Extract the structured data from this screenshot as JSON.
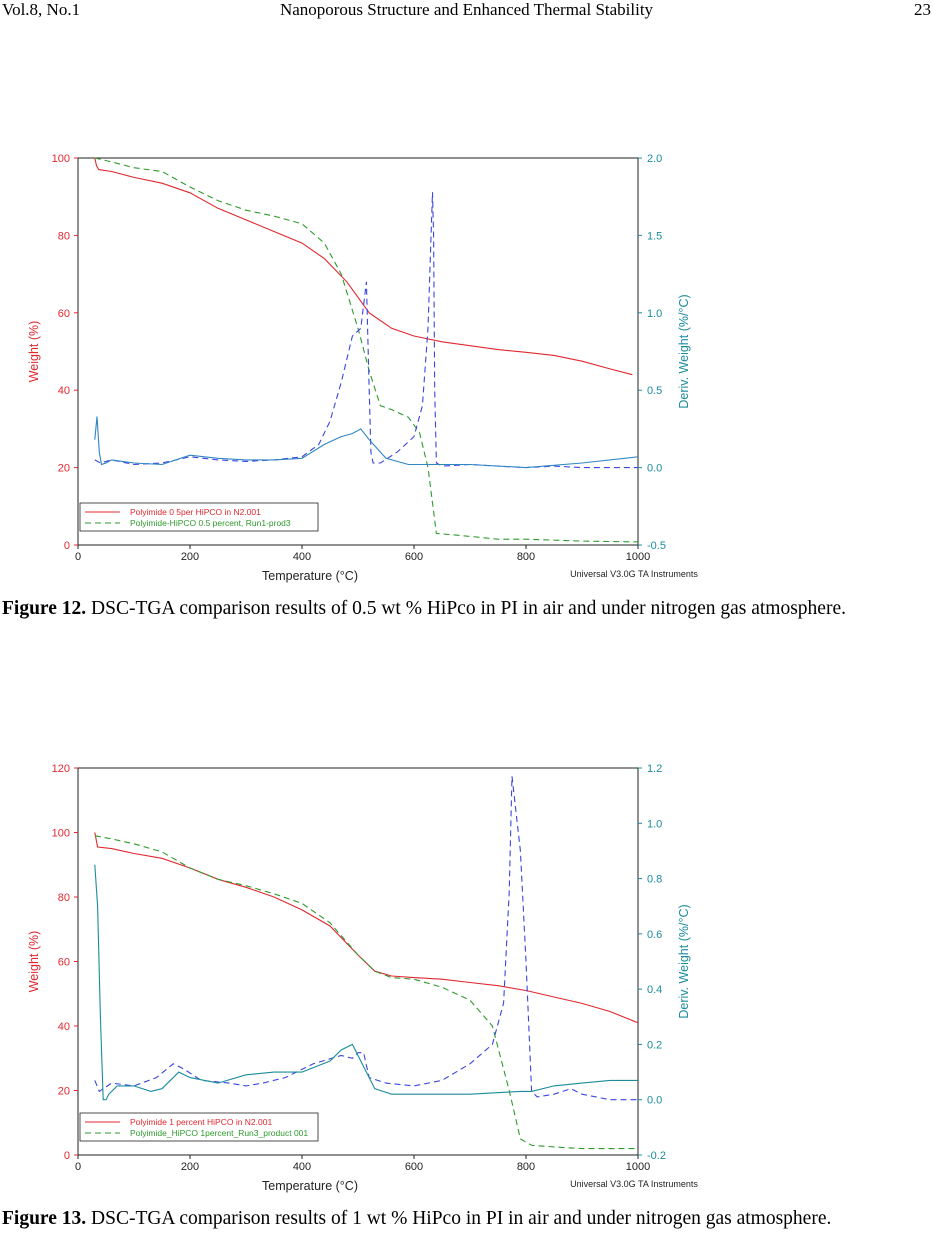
{
  "header": {
    "left": "Vol.8, No.1",
    "center": "Nanoporous Structure and Enhanced Thermal Stability",
    "right": "23"
  },
  "colors": {
    "red": "#e0282f",
    "green": "#2e9a2e",
    "blue": "#3a45e0",
    "teal": "#1a8c9c",
    "cyan_line": "#2f86c4"
  },
  "figures": [
    {
      "caption_label": "Figure 12.",
      "caption_text": "  DSC-TGA comparison results of 0.5 wt % HiPco in PI in air and under nitrogen gas atmosphere.",
      "chart_data": {
        "type": "line",
        "xlabel": "Temperature (°C)",
        "ylabel": "Weight (%)",
        "y2label": "Deriv. Weight (%/°C)",
        "footer": "Universal V3.0G TA Instruments",
        "xlim": [
          0,
          1000
        ],
        "ylim": [
          0,
          100
        ],
        "y2lim": [
          -0.5,
          2.0
        ],
        "xticks": [
          "0",
          "200",
          "400",
          "600",
          "800",
          "1000"
        ],
        "yticks": [
          "0",
          "20",
          "40",
          "60",
          "80",
          "100"
        ],
        "y2ticks": [
          "-0.5",
          "0.0",
          "0.5",
          "1.0",
          "1.5",
          "2.0"
        ],
        "legend": [
          {
            "label": "Polyimide 0  5per HiPCO in N2.001",
            "style": "solid",
            "color": "#e0282f"
          },
          {
            "label": "Polyimide-HiPCO 0.5 percent, Run1-prod3",
            "style": "dashed",
            "color": "#2e9a2e"
          }
        ],
        "series": [
          {
            "axis": "left",
            "style": "solid",
            "color": "#e0282f",
            "x": [
              30,
              33,
              37,
              60,
              100,
              150,
              200,
              250,
              300,
              350,
              400,
              440,
              480,
              520,
              560,
              600,
              650,
              700,
              750,
              800,
              850,
              900,
              950,
              990
            ],
            "y": [
              100,
              98,
              97,
              96.5,
              95,
              93.5,
              91,
              87,
              84,
              81,
              78,
              74,
              68,
              60,
              56,
              54,
              52.5,
              51.5,
              50.5,
              49.8,
              49,
              47.5,
              45.5,
              44
            ]
          },
          {
            "axis": "left",
            "style": "dashed",
            "color": "#2e9a2e",
            "x": [
              30,
              60,
              100,
              150,
              200,
              250,
              300,
              350,
              400,
              440,
              470,
              500,
              520,
              540,
              560,
              590,
              610,
              625,
              640,
              680,
              750,
              800,
              900,
              1000
            ],
            "y": [
              100,
              99,
              97.5,
              96.5,
              92.5,
              89,
              86.5,
              85,
              83,
              78,
              70,
              56,
              45,
              36,
              35,
              33,
              29,
              20,
              3,
              2.5,
              1.5,
              1.5,
              1,
              0.8
            ]
          },
          {
            "axis": "right",
            "style": "dashed",
            "color": "#3a45e0",
            "x": [
              30,
              40,
              60,
              100,
              150,
              200,
              250,
              300,
              350,
              400,
              430,
              450,
              470,
              490,
              505,
              515,
              520,
              523,
              527,
              540,
              570,
              600,
              615,
              625,
              633,
              635,
              637,
              640,
              650,
              700,
              750,
              800,
              850,
              900,
              1000
            ],
            "y": [
              0.05,
              0.03,
              0.05,
              0.02,
              0.03,
              0.07,
              0.05,
              0.04,
              0.05,
              0.07,
              0.15,
              0.3,
              0.55,
              0.85,
              0.9,
              1.2,
              0.5,
              0.1,
              0.03,
              0.03,
              0.1,
              0.2,
              0.4,
              0.9,
              1.78,
              1.5,
              0.5,
              0.03,
              0.01,
              0.02,
              0.01,
              0.0,
              0.01,
              0.0,
              0.0
            ]
          },
          {
            "axis": "right",
            "style": "solid",
            "color": "#2f86c4",
            "x": [
              30,
              34,
              38,
              42,
              50,
              60,
              100,
              150,
              200,
              250,
              300,
              350,
              400,
              440,
              470,
              490,
              505,
              520,
              550,
              590,
              620,
              700,
              800,
              900,
              1000
            ],
            "y": [
              0.18,
              0.33,
              0.1,
              0.02,
              0.03,
              0.05,
              0.03,
              0.02,
              0.08,
              0.06,
              0.05,
              0.05,
              0.06,
              0.15,
              0.2,
              0.22,
              0.25,
              0.18,
              0.06,
              0.02,
              0.02,
              0.02,
              0.0,
              0.03,
              0.07
            ]
          }
        ]
      }
    },
    {
      "caption_label": "Figure 13.",
      "caption_text": "  DSC-TGA comparison results of 1 wt % HiPco in PI in air and under nitrogen gas atmosphere.",
      "chart_data": {
        "type": "line",
        "xlabel": "Temperature (°C)",
        "ylabel": "Weight (%)",
        "y2label": "Deriv. Weight (%/°C)",
        "footer": "Universal V3.0G TA Instruments",
        "xlim": [
          0,
          1000
        ],
        "ylim": [
          0,
          120
        ],
        "y2lim": [
          -0.2,
          1.2
        ],
        "xticks": [
          "0",
          "200",
          "400",
          "600",
          "800",
          "1000"
        ],
        "yticks": [
          "0",
          "20",
          "40",
          "60",
          "80",
          "100",
          "120"
        ],
        "y2ticks": [
          "-0.2",
          "0.0",
          "0.2",
          "0.4",
          "0.6",
          "0.8",
          "1.0",
          "1.2"
        ],
        "legend": [
          {
            "label": "Polyimide 1 percent HiPCO in N2.001",
            "style": "solid",
            "color": "#e0282f"
          },
          {
            "label": "Polyimide_HiPCO 1percent_Run3_product 001",
            "style": "dashed",
            "color": "#2e9a2e"
          }
        ],
        "series": [
          {
            "axis": "left",
            "style": "solid",
            "color": "#e0282f",
            "x": [
              30,
              35,
              60,
              100,
              150,
              200,
              250,
              300,
              350,
              400,
              450,
              500,
              530,
              560,
              600,
              650,
              700,
              750,
              800,
              850,
              900,
              950,
              1000
            ],
            "y": [
              100,
              95.5,
              95,
              93.5,
              92,
              89,
              85.5,
              83,
              80,
              76,
              71,
              62,
              57,
              55.5,
              55,
              54.5,
              53.5,
              52.5,
              51,
              49,
              47,
              44.5,
              41
            ]
          },
          {
            "axis": "left",
            "style": "dashed",
            "color": "#2e9a2e",
            "x": [
              30,
              60,
              100,
              150,
              200,
              250,
              300,
              350,
              400,
              450,
              500,
              530,
              560,
              600,
              650,
              700,
              740,
              770,
              790,
              810,
              850,
              900,
              1000
            ],
            "y": [
              99,
              98,
              96.5,
              94,
              89,
              85.5,
              83.5,
              81,
              78,
              72,
              62,
              57,
              55,
              54.5,
              52,
              48,
              40,
              20,
              5,
              3,
              2.5,
              2,
              2
            ]
          },
          {
            "axis": "right",
            "style": "dashed",
            "color": "#3a45e0",
            "x": [
              30,
              38,
              60,
              100,
              140,
              170,
              190,
              220,
              270,
              300,
              330,
              370,
              420,
              470,
              490,
              500,
              510,
              520,
              550,
              600,
              650,
              700,
              740,
              760,
              770,
              775,
              790,
              800,
              810,
              820,
              850,
              880,
              900,
              950,
              1000
            ],
            "y": [
              0.07,
              0.03,
              0.06,
              0.05,
              0.08,
              0.13,
              0.11,
              0.07,
              0.06,
              0.05,
              0.06,
              0.08,
              0.13,
              0.16,
              0.15,
              0.17,
              0.17,
              0.08,
              0.06,
              0.05,
              0.07,
              0.13,
              0.2,
              0.35,
              0.75,
              1.17,
              0.9,
              0.5,
              0.03,
              0.01,
              0.02,
              0.04,
              0.02,
              0.0,
              0.0
            ]
          },
          {
            "axis": "right",
            "style": "solid",
            "color": "#1a8c9c",
            "x": [
              30,
              35,
              40,
              45,
              50,
              55,
              70,
              100,
              130,
              150,
              180,
              200,
              250,
              300,
              350,
              400,
              450,
              470,
              490,
              500,
              515,
              530,
              560,
              600,
              700,
              790,
              810,
              850,
              900,
              950,
              1000
            ],
            "y": [
              0.85,
              0.7,
              0.3,
              0.0,
              0.0,
              0.02,
              0.05,
              0.05,
              0.03,
              0.04,
              0.1,
              0.08,
              0.06,
              0.09,
              0.1,
              0.1,
              0.14,
              0.18,
              0.2,
              0.16,
              0.1,
              0.04,
              0.02,
              0.02,
              0.02,
              0.03,
              0.03,
              0.05,
              0.06,
              0.07,
              0.07
            ]
          }
        ]
      }
    }
  ]
}
